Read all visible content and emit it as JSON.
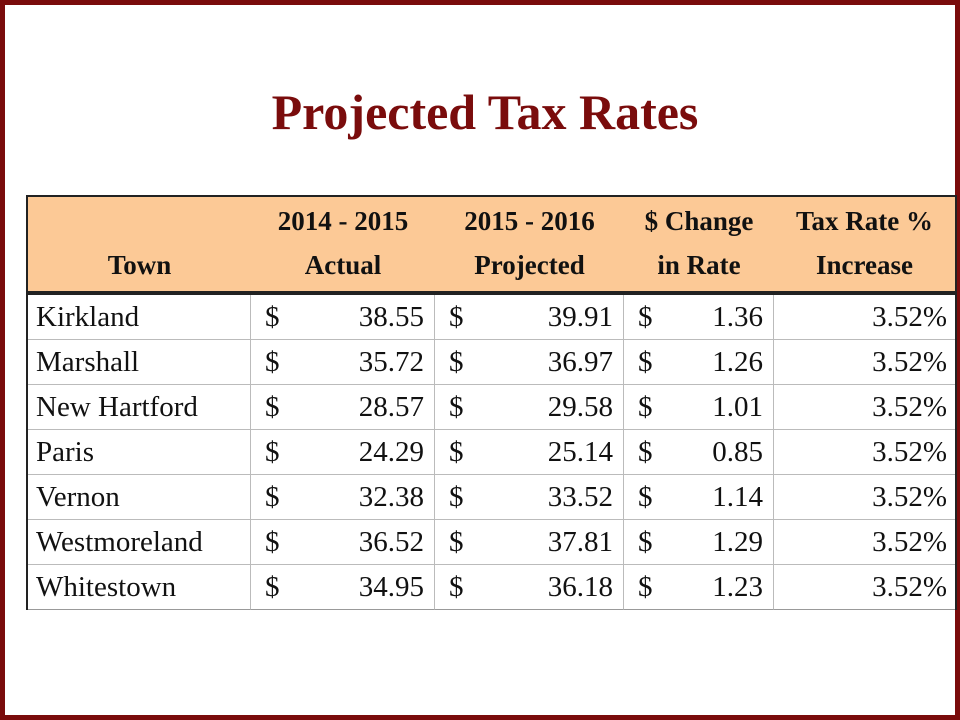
{
  "title": "Projected Tax Rates",
  "chart_data": {
    "type": "table",
    "columns": [
      {
        "line1": "",
        "line2": "Town"
      },
      {
        "line1": "2014 - 2015",
        "line2": "Actual"
      },
      {
        "line1": "2015 - 2016",
        "line2": "Projected"
      },
      {
        "line1": "$ Change",
        "line2": "in Rate"
      },
      {
        "line1": "Tax Rate %",
        "line2": "Increase"
      }
    ],
    "currency_symbol": "$",
    "rows": [
      {
        "town": "Kirkland",
        "actual": "38.55",
        "projected": "39.91",
        "change": "1.36",
        "increase": "3.52%"
      },
      {
        "town": "Marshall",
        "actual": "35.72",
        "projected": "36.97",
        "change": "1.26",
        "increase": "3.52%"
      },
      {
        "town": "New Hartford",
        "actual": "28.57",
        "projected": "29.58",
        "change": "1.01",
        "increase": "3.52%"
      },
      {
        "town": "Paris",
        "actual": "24.29",
        "projected": "25.14",
        "change": "0.85",
        "increase": "3.52%"
      },
      {
        "town": "Vernon",
        "actual": "32.38",
        "projected": "33.52",
        "change": "1.14",
        "increase": "3.52%"
      },
      {
        "town": "Westmoreland",
        "actual": "36.52",
        "projected": "37.81",
        "change": "1.29",
        "increase": "3.52%"
      },
      {
        "town": "Whitestown",
        "actual": "34.95",
        "projected": "36.18",
        "change": "1.23",
        "increase": "3.52%"
      }
    ]
  }
}
